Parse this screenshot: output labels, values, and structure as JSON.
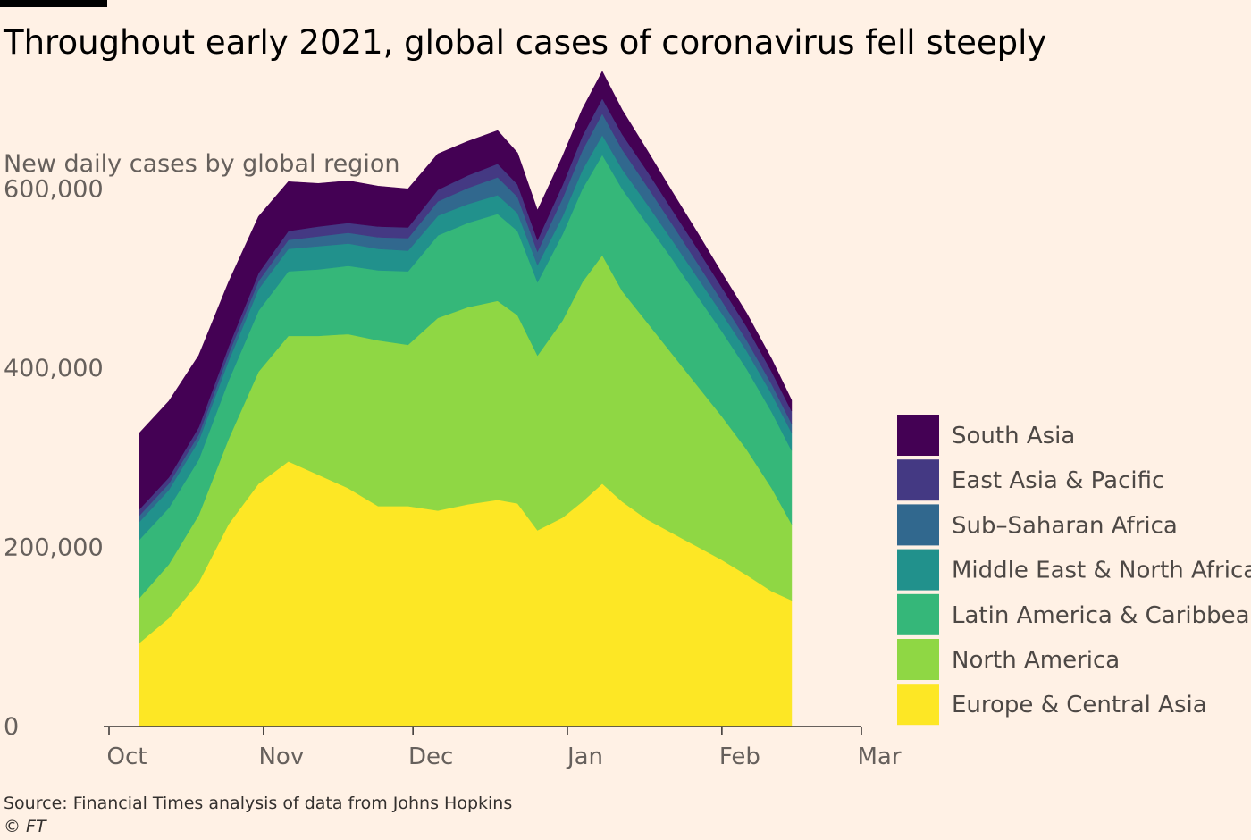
{
  "title": "Throughout early 2021, global cases of coronavirus fell steeply",
  "source": "Source: Financial Times analysis of data from Johns Hopkins",
  "copyright": "© FT",
  "chart_data": {
    "type": "area",
    "stacked": true,
    "subtitle": "New daily cases by global region",
    "xlabel": "",
    "ylabel": "",
    "ylim": [
      0,
      700000
    ],
    "xlim": [
      "2020-10-01",
      "2021-03-01"
    ],
    "x_tick_labels": [
      "Oct",
      "Nov",
      "Dec",
      "Jan",
      "Feb",
      "Mar"
    ],
    "x_tick_dates": [
      "2020-10-01",
      "2020-11-01",
      "2020-12-01",
      "2021-01-01",
      "2021-02-01",
      "2021-03-01"
    ],
    "y_ticks": [
      0,
      200000,
      400000,
      600000
    ],
    "y_tick_labels": [
      "0",
      "200,000",
      "400,000",
      "600,000"
    ],
    "legend_position": "right",
    "grid": false,
    "x": [
      "2020-10-07",
      "2020-10-13",
      "2020-10-19",
      "2020-10-25",
      "2020-10-31",
      "2020-11-06",
      "2020-11-12",
      "2020-11-18",
      "2020-11-24",
      "2020-11-30",
      "2020-12-06",
      "2020-12-12",
      "2020-12-18",
      "2020-12-22",
      "2020-12-26",
      "2020-12-31",
      "2021-01-04",
      "2021-01-08",
      "2021-01-12",
      "2021-01-17",
      "2021-01-22",
      "2021-01-27",
      "2021-02-01",
      "2021-02-06",
      "2021-02-11",
      "2021-02-15"
    ],
    "series": [
      {
        "name": "Europe & Central Asia",
        "color": "#fde725",
        "values": [
          92000,
          120000,
          160000,
          225000,
          270000,
          295000,
          280000,
          265000,
          245000,
          245000,
          240000,
          247000,
          252000,
          248000,
          218000,
          232000,
          250000,
          270000,
          250000,
          230000,
          215000,
          200000,
          185000,
          168000,
          150000,
          140000
        ]
      },
      {
        "name": "North America",
        "color": "#8fd744",
        "values": [
          50000,
          60000,
          75000,
          95000,
          125000,
          140000,
          155000,
          172000,
          185000,
          180000,
          215000,
          220000,
          222000,
          210000,
          195000,
          220000,
          245000,
          255000,
          235000,
          220000,
          200000,
          180000,
          160000,
          140000,
          115000,
          85000
        ]
      },
      {
        "name": "Latin America & Caribbean",
        "color": "#35b779",
        "values": [
          65000,
          63000,
          62000,
          65000,
          68000,
          72000,
          74000,
          76000,
          78000,
          82000,
          92000,
          94000,
          97000,
          94000,
          82000,
          96000,
          104000,
          112000,
          114000,
          110000,
          106000,
          100000,
          95000,
          90000,
          85000,
          82000
        ]
      },
      {
        "name": "Middle East & North Africa",
        "color": "#21918c",
        "values": [
          20000,
          20000,
          21000,
          22000,
          24000,
          25000,
          26000,
          25000,
          24000,
          23000,
          22000,
          21000,
          21000,
          20000,
          19000,
          20000,
          21000,
          22000,
          22000,
          22000,
          21000,
          21000,
          20000,
          20000,
          20000,
          20000
        ]
      },
      {
        "name": "Sub–Saharan Africa",
        "color": "#31688e",
        "values": [
          7000,
          7000,
          7000,
          8000,
          9000,
          10000,
          11000,
          12000,
          13000,
          14000,
          16000,
          18000,
          20000,
          18000,
          15000,
          20000,
          22000,
          24000,
          22000,
          20000,
          18000,
          16000,
          14000,
          12000,
          11000,
          10000
        ]
      },
      {
        "name": "East Asia & Pacific",
        "color": "#443983",
        "values": [
          7000,
          7000,
          8000,
          8000,
          9000,
          10000,
          11000,
          11000,
          12000,
          12000,
          13000,
          14000,
          15000,
          14000,
          13000,
          15000,
          16000,
          17000,
          17000,
          17000,
          16000,
          16000,
          15000,
          15000,
          14000,
          14000
        ]
      },
      {
        "name": "South Asia",
        "color": "#440154",
        "values": [
          85000,
          85000,
          80000,
          72000,
          63000,
          55000,
          48000,
          47000,
          45000,
          43000,
          40000,
          38000,
          37000,
          35000,
          33000,
          32000,
          30000,
          30000,
          27000,
          23000,
          20000,
          18000,
          16000,
          15000,
          14000,
          12000
        ]
      }
    ]
  }
}
